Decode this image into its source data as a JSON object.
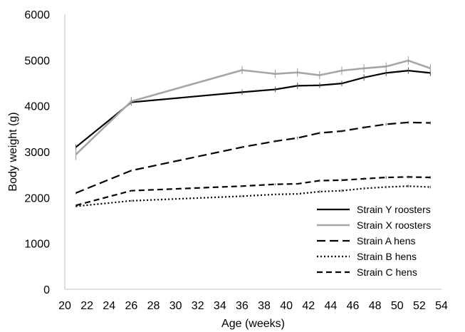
{
  "chart_data": {
    "type": "line",
    "xlabel": "Age (weeks)",
    "ylabel": "Body weight (g)",
    "xlim": [
      20,
      54
    ],
    "ylim": [
      0,
      6000
    ],
    "x_ticks": [
      20,
      22,
      24,
      26,
      28,
      30,
      32,
      34,
      36,
      38,
      40,
      42,
      44,
      46,
      48,
      50,
      52,
      54
    ],
    "y_ticks": [
      0,
      1000,
      2000,
      3000,
      4000,
      5000,
      6000
    ],
    "grid": false,
    "legend_position": "bottom-right",
    "series": [
      {
        "name": "Strain Y roosters",
        "color": "#000000",
        "dash": "solid",
        "x": [
          21,
          26,
          36,
          39,
          41,
          43,
          45,
          47,
          49,
          51,
          53
        ],
        "y": [
          3100,
          4080,
          4300,
          4360,
          4440,
          4450,
          4490,
          4620,
          4720,
          4770,
          4720
        ],
        "error": [
          60,
          80,
          60,
          60,
          70,
          60,
          60,
          70,
          70,
          70,
          70
        ]
      },
      {
        "name": "Strain X roosters",
        "color": "#a6a6a6",
        "dash": "solid",
        "x": [
          21,
          26,
          36,
          39,
          41,
          43,
          45,
          47,
          49,
          51,
          53
        ],
        "y": [
          2940,
          4100,
          4780,
          4700,
          4730,
          4670,
          4770,
          4820,
          4860,
          4990,
          4820
        ],
        "error": [
          120,
          100,
          90,
          90,
          90,
          90,
          90,
          90,
          90,
          90,
          90
        ]
      },
      {
        "name": "Strain A hens",
        "color": "#000000",
        "dash": "long",
        "x": [
          21,
          26,
          36,
          39,
          41,
          43,
          45,
          47,
          49,
          51,
          53
        ],
        "y": [
          2100,
          2590,
          3100,
          3230,
          3300,
          3410,
          3450,
          3530,
          3600,
          3640,
          3630
        ],
        "error": [
          25,
          25,
          25,
          30,
          30,
          30,
          30,
          30,
          30,
          30,
          30
        ]
      },
      {
        "name": "Strain B hens",
        "color": "#000000",
        "dash": "dotted",
        "x": [
          21,
          26,
          36,
          39,
          41,
          43,
          45,
          47,
          49,
          51,
          53
        ],
        "y": [
          1810,
          1930,
          2030,
          2070,
          2080,
          2130,
          2150,
          2200,
          2230,
          2250,
          2230
        ],
        "error": [
          20,
          20,
          20,
          20,
          20,
          30,
          30,
          30,
          30,
          30,
          30
        ]
      },
      {
        "name": "Strain C hens",
        "color": "#000000",
        "dash": "medium",
        "x": [
          21,
          26,
          36,
          39,
          41,
          43,
          45,
          47,
          49,
          51,
          53
        ],
        "y": [
          1830,
          2150,
          2250,
          2290,
          2300,
          2370,
          2380,
          2410,
          2440,
          2450,
          2440
        ],
        "error": [
          20,
          20,
          20,
          20,
          20,
          30,
          30,
          30,
          30,
          30,
          30
        ]
      }
    ]
  }
}
